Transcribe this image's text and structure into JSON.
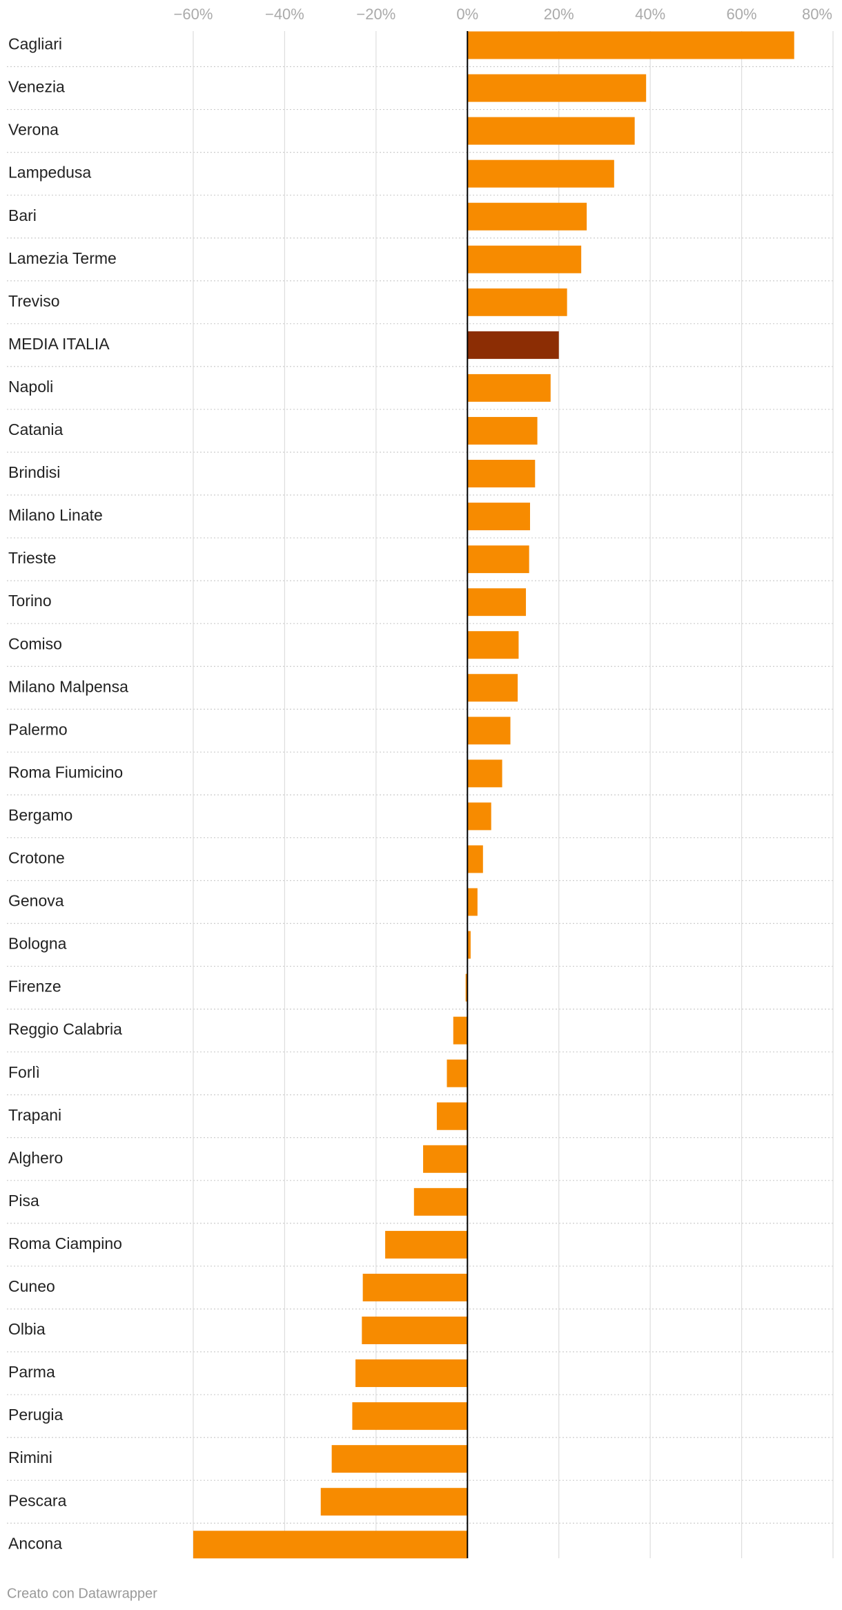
{
  "chart_data": {
    "type": "bar",
    "orientation": "horizontal",
    "categories": [
      "Cagliari",
      "Venezia",
      "Verona",
      "Lampedusa",
      "Bari",
      "Lamezia Terme",
      "Treviso",
      "MEDIA ITALIA",
      "Napoli",
      "Catania",
      "Brindisi",
      "Milano Linate",
      "Trieste",
      "Torino",
      "Comiso",
      "Milano Malpensa",
      "Palermo",
      "Roma Fiumicino",
      "Bergamo",
      "Crotone",
      "Genova",
      "Bologna",
      "Firenze",
      "Reggio Calabria",
      "Forlì",
      "Trapani",
      "Alghero",
      "Pisa",
      "Roma Ciampino",
      "Cuneo",
      "Olbia",
      "Parma",
      "Perugia",
      "Rimini",
      "Pescara",
      "Ancona"
    ],
    "values": [
      71.5,
      39.1,
      36.6,
      32.1,
      26.1,
      24.9,
      21.8,
      20.0,
      18.2,
      15.3,
      14.8,
      13.7,
      13.5,
      12.8,
      11.2,
      11.0,
      9.4,
      7.6,
      5.2,
      3.4,
      2.2,
      0.7,
      -0.4,
      -3.1,
      -4.5,
      -6.7,
      -9.7,
      -11.7,
      -18.0,
      -22.9,
      -23.1,
      -24.5,
      -25.2,
      -29.7,
      -32.1,
      -60.0
    ],
    "colors": [
      "#f78b00",
      "#f78b00",
      "#f78b00",
      "#f78b00",
      "#f78b00",
      "#f78b00",
      "#f78b00",
      "#8c2d04",
      "#f78b00",
      "#f78b00",
      "#f78b00",
      "#f78b00",
      "#f78b00",
      "#f78b00",
      "#f78b00",
      "#f78b00",
      "#f78b00",
      "#f78b00",
      "#f78b00",
      "#f78b00",
      "#f78b00",
      "#f78b00",
      "#f78b00",
      "#f78b00",
      "#f78b00",
      "#f78b00",
      "#f78b00",
      "#f78b00",
      "#f78b00",
      "#f78b00",
      "#f78b00",
      "#f78b00",
      "#f78b00",
      "#f78b00",
      "#f78b00",
      "#f78b00"
    ],
    "xlim": [
      -60,
      80
    ],
    "xticks": [
      {
        "value": -60,
        "label": "−60%"
      },
      {
        "value": -40,
        "label": "−40%"
      },
      {
        "value": -20,
        "label": "−20%"
      },
      {
        "value": 0,
        "label": "0%"
      },
      {
        "value": 20,
        "label": "20%"
      },
      {
        "value": 40,
        "label": "40%"
      },
      {
        "value": 60,
        "label": "60%"
      },
      {
        "value": 80,
        "label": "80%"
      }
    ],
    "grid": true,
    "footer": "Creato con Datawrapper"
  }
}
